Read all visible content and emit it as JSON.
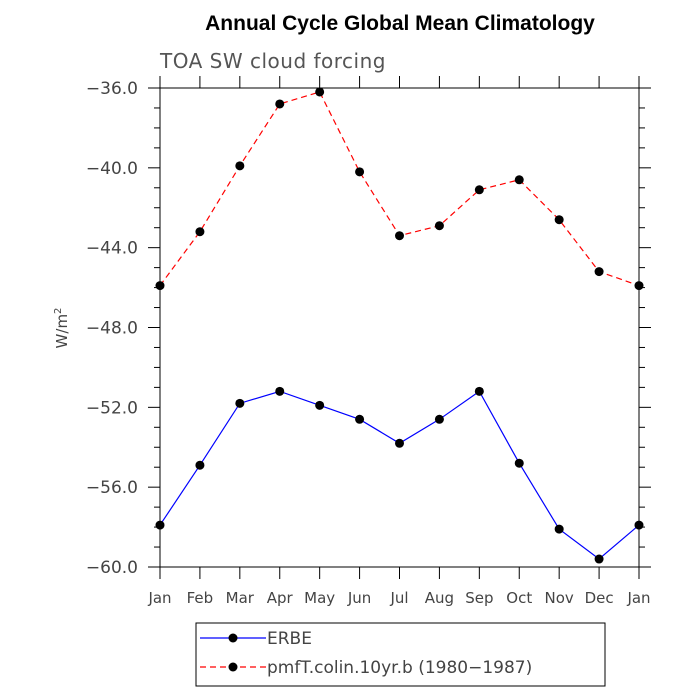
{
  "chart_data": {
    "type": "line",
    "title": "Annual Cycle Global Mean Climatology",
    "subtitle": "TOA SW cloud forcing",
    "ylabel": "W/m",
    "ylabel_sup": "2",
    "xlabel": "",
    "categories": [
      "Jan",
      "Feb",
      "Mar",
      "Apr",
      "May",
      "Jun",
      "Jul",
      "Aug",
      "Sep",
      "Oct",
      "Nov",
      "Dec",
      "Jan"
    ],
    "ylim": [
      -60,
      -36
    ],
    "yticks": [
      -36,
      -40,
      -44,
      -48,
      -52,
      -56,
      -60
    ],
    "ytick_labels": [
      "−36.0",
      "−40.0",
      "−44.0",
      "−48.0",
      "−52.0",
      "−56.0",
      "−60.0"
    ],
    "series": [
      {
        "name": "ERBE",
        "legend_label": "ERBE",
        "color": "#0000ff",
        "dash": "solid",
        "values": [
          -57.9,
          -54.9,
          -51.8,
          -51.2,
          -51.9,
          -52.6,
          -53.8,
          -52.6,
          -51.2,
          -54.8,
          -58.1,
          -59.6,
          -57.9
        ]
      },
      {
        "name": "pmfT.colin.10yr.b (1980-1987)",
        "legend_label": "pmfT.colin.10yr.b (1980−1987)",
        "color": "#ff0000",
        "dash": "dashed",
        "values": [
          -45.9,
          -43.2,
          -39.9,
          -36.8,
          -36.2,
          -40.2,
          -43.4,
          -42.9,
          -41.1,
          -40.6,
          -42.6,
          -45.2,
          -45.9
        ]
      }
    ]
  }
}
